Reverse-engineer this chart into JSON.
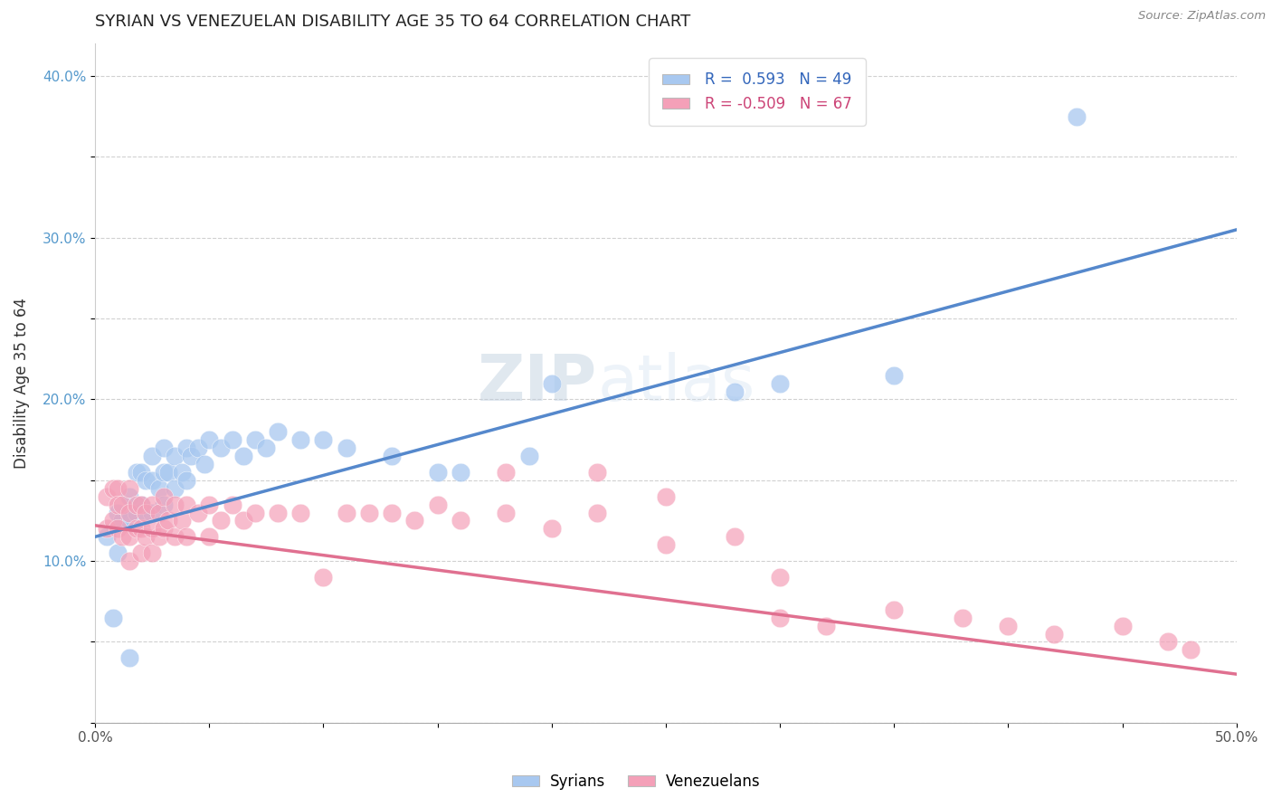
{
  "title": "SYRIAN VS VENEZUELAN DISABILITY AGE 35 TO 64 CORRELATION CHART",
  "source": "Source: ZipAtlas.com",
  "ylabel": "Disability Age 35 to 64",
  "xlim": [
    0.0,
    0.5
  ],
  "ylim": [
    0.0,
    0.42
  ],
  "xtick_positions": [
    0.0,
    0.05,
    0.1,
    0.15,
    0.2,
    0.25,
    0.3,
    0.35,
    0.4,
    0.45,
    0.5
  ],
  "xtick_labels": [
    "0.0%",
    "",
    "",
    "",
    "",
    "",
    "",
    "",
    "",
    "",
    "50.0%"
  ],
  "ytick_positions": [
    0.0,
    0.05,
    0.1,
    0.15,
    0.2,
    0.25,
    0.3,
    0.35,
    0.4
  ],
  "ytick_labels": [
    "",
    "",
    "10.0%",
    "",
    "20.0%",
    "",
    "30.0%",
    "",
    "40.0%"
  ],
  "syrian_color": "#a8c8f0",
  "venezuelan_color": "#f4a0b8",
  "syrian_line_color": "#5588cc",
  "venezuelan_line_color": "#e07090",
  "watermark_zip": "ZIP",
  "watermark_atlas": "atlas",
  "background_color": "#ffffff",
  "grid_color": "#cccccc",
  "legend_entry1_r": "R =  0.593",
  "legend_entry1_n": "N = 49",
  "legend_entry2_r": "R = -0.509",
  "legend_entry2_n": "N = 67",
  "syrian_line_x0": 0.0,
  "syrian_line_y0": 0.115,
  "syrian_line_x1": 0.5,
  "syrian_line_y1": 0.305,
  "venezuelan_line_x0": 0.0,
  "venezuelan_line_y0": 0.122,
  "venezuelan_line_x1": 0.5,
  "venezuelan_line_y1": 0.03,
  "syr_x": [
    0.005,
    0.008,
    0.01,
    0.01,
    0.012,
    0.015,
    0.015,
    0.018,
    0.018,
    0.02,
    0.02,
    0.022,
    0.022,
    0.025,
    0.025,
    0.025,
    0.028,
    0.03,
    0.03,
    0.03,
    0.032,
    0.035,
    0.035,
    0.038,
    0.04,
    0.04,
    0.042,
    0.045,
    0.048,
    0.05,
    0.055,
    0.06,
    0.065,
    0.07,
    0.075,
    0.08,
    0.09,
    0.1,
    0.11,
    0.13,
    0.15,
    0.16,
    0.19,
    0.2,
    0.28,
    0.3,
    0.35,
    0.43,
    0.015
  ],
  "syr_y": [
    0.115,
    0.065,
    0.13,
    0.105,
    0.125,
    0.14,
    0.125,
    0.155,
    0.13,
    0.155,
    0.135,
    0.15,
    0.13,
    0.165,
    0.15,
    0.13,
    0.145,
    0.17,
    0.155,
    0.135,
    0.155,
    0.165,
    0.145,
    0.155,
    0.17,
    0.15,
    0.165,
    0.17,
    0.16,
    0.175,
    0.17,
    0.175,
    0.165,
    0.175,
    0.17,
    0.18,
    0.175,
    0.175,
    0.17,
    0.165,
    0.155,
    0.155,
    0.165,
    0.21,
    0.205,
    0.21,
    0.215,
    0.375,
    0.04
  ],
  "ven_x": [
    0.005,
    0.005,
    0.008,
    0.008,
    0.01,
    0.01,
    0.01,
    0.012,
    0.012,
    0.015,
    0.015,
    0.015,
    0.015,
    0.018,
    0.018,
    0.02,
    0.02,
    0.02,
    0.022,
    0.022,
    0.025,
    0.025,
    0.025,
    0.028,
    0.028,
    0.03,
    0.03,
    0.032,
    0.035,
    0.035,
    0.038,
    0.04,
    0.04,
    0.045,
    0.05,
    0.05,
    0.055,
    0.06,
    0.065,
    0.07,
    0.08,
    0.09,
    0.1,
    0.11,
    0.12,
    0.13,
    0.14,
    0.15,
    0.16,
    0.18,
    0.2,
    0.22,
    0.25,
    0.28,
    0.3,
    0.35,
    0.38,
    0.4,
    0.42,
    0.45,
    0.47,
    0.48,
    0.3,
    0.32,
    0.18,
    0.22,
    0.25
  ],
  "ven_y": [
    0.14,
    0.12,
    0.145,
    0.125,
    0.145,
    0.135,
    0.12,
    0.135,
    0.115,
    0.145,
    0.13,
    0.115,
    0.1,
    0.135,
    0.12,
    0.135,
    0.12,
    0.105,
    0.13,
    0.115,
    0.135,
    0.12,
    0.105,
    0.13,
    0.115,
    0.14,
    0.12,
    0.125,
    0.135,
    0.115,
    0.125,
    0.135,
    0.115,
    0.13,
    0.135,
    0.115,
    0.125,
    0.135,
    0.125,
    0.13,
    0.13,
    0.13,
    0.09,
    0.13,
    0.13,
    0.13,
    0.125,
    0.135,
    0.125,
    0.13,
    0.12,
    0.13,
    0.11,
    0.115,
    0.09,
    0.07,
    0.065,
    0.06,
    0.055,
    0.06,
    0.05,
    0.045,
    0.065,
    0.06,
    0.155,
    0.155,
    0.14
  ]
}
